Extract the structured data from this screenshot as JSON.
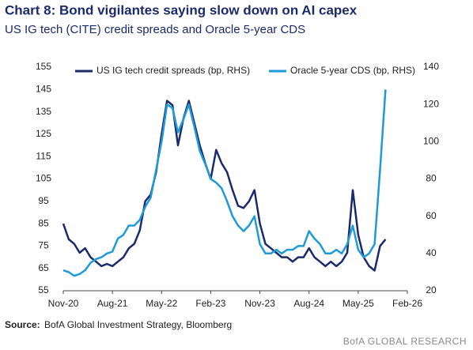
{
  "chart_data": {
    "type": "line",
    "title": "Chart 8: Bond vigilantes saying slow down on AI capex",
    "subtitle": "US IG tech (CITE) credit spreads and Oracle 5-year CDS",
    "source_label": "Source:",
    "source": "BofA Global Investment Strategy, Bloomberg",
    "brand": "BofA GLOBAL RESEARCH",
    "x": [
      "2020-11",
      "2020-12",
      "2021-01",
      "2021-02",
      "2021-03",
      "2021-04",
      "2021-05",
      "2021-06",
      "2021-07",
      "2021-08",
      "2021-09",
      "2021-10",
      "2021-11",
      "2021-12",
      "2022-01",
      "2022-02",
      "2022-03",
      "2022-04",
      "2022-05",
      "2022-06",
      "2022-07",
      "2022-08",
      "2022-09",
      "2022-10",
      "2022-11",
      "2022-12",
      "2023-01",
      "2023-02",
      "2023-03",
      "2023-04",
      "2023-05",
      "2023-06",
      "2023-07",
      "2023-08",
      "2023-09",
      "2023-10",
      "2023-11",
      "2023-12",
      "2024-01",
      "2024-02",
      "2024-03",
      "2024-04",
      "2024-05",
      "2024-06",
      "2024-07",
      "2024-08",
      "2024-09",
      "2024-10",
      "2024-11",
      "2024-12",
      "2025-01",
      "2025-02",
      "2025-03",
      "2025-04",
      "2025-05",
      "2025-06",
      "2025-07",
      "2025-08",
      "2025-09",
      "2025-10"
    ],
    "series": [
      {
        "name": "US IG tech credit spreads (bp, RHS)",
        "color": "#1b2a6b",
        "values": [
          85,
          78,
          76,
          72,
          74,
          70,
          68,
          66,
          67,
          66,
          68,
          70,
          74,
          76,
          82,
          95,
          98,
          108,
          125,
          140,
          138,
          120,
          132,
          140,
          130,
          120,
          112,
          105,
          118,
          112,
          108,
          100,
          93,
          92,
          95,
          100,
          85,
          76,
          74,
          72,
          70,
          70,
          68,
          70,
          70,
          74,
          70,
          68,
          66,
          68,
          66,
          68,
          72,
          100,
          80,
          70,
          66,
          64,
          75,
          78
        ]
      },
      {
        "name": "Oracle 5-year CDS (bp, RHS)",
        "color": "#1e9ad6",
        "axis": "y2",
        "values": [
          31,
          30,
          28,
          29,
          31,
          35,
          37,
          38,
          40,
          41,
          48,
          50,
          55,
          55,
          58,
          65,
          70,
          85,
          100,
          120,
          118,
          105,
          112,
          120,
          108,
          95,
          88,
          80,
          78,
          75,
          68,
          60,
          55,
          52,
          55,
          60,
          45,
          40,
          40,
          42,
          40,
          42,
          42,
          44,
          44,
          52,
          48,
          45,
          40,
          40,
          42,
          40,
          45,
          55,
          42,
          38,
          40,
          45,
          85,
          128
        ]
      }
    ],
    "xlim": [
      "2020-11",
      "2026-02"
    ],
    "xticks": [
      {
        "value": "2020-11",
        "label": "Nov-20"
      },
      {
        "value": "2021-08",
        "label": "Aug-21"
      },
      {
        "value": "2022-05",
        "label": "May-22"
      },
      {
        "value": "2023-02",
        "label": "Feb-23"
      },
      {
        "value": "2023-11",
        "label": "Nov-23"
      },
      {
        "value": "2024-08",
        "label": "Aug-24"
      },
      {
        "value": "2025-05",
        "label": "May-25"
      },
      {
        "value": "2026-02",
        "label": "Feb-26"
      }
    ],
    "ylim": [
      55,
      155
    ],
    "yticks": [
      55,
      65,
      75,
      85,
      95,
      105,
      115,
      125,
      135,
      145,
      155
    ],
    "y2lim": [
      20,
      140
    ],
    "y2ticks": [
      20,
      40,
      60,
      80,
      100,
      120,
      140
    ]
  }
}
